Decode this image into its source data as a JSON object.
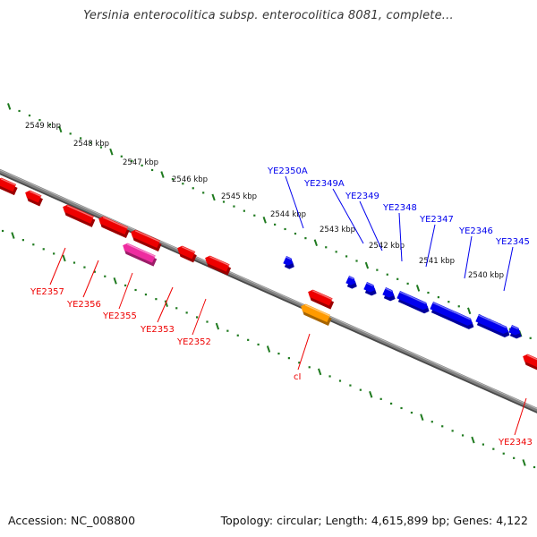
{
  "title": "Yersinia enterocolitica subsp. enterocolitica 8081, complete...",
  "footer": {
    "accession": "Accession: NC_008800",
    "topology": "Topology: circular; Length: 4,615,899 bp; Genes: 4,122"
  },
  "colors": {
    "backbone": "#808080",
    "ruler": "#1f7a1f",
    "forward_gene": "#0000ee",
    "reverse_gene": "#ee0000",
    "pink_gene": "#ee2ca0",
    "orange_gene": "#ff9a00"
  },
  "kbp_ticks": [
    "2549 kbp",
    "2548 kbp",
    "2547 kbp",
    "2546 kbp",
    "2545 kbp",
    "2544 kbp",
    "2543 kbp",
    "2542 kbp",
    "2541 kbp",
    "2540 kbp"
  ],
  "forward_labels": [
    "YE2350A",
    "YE2349A",
    "YE2349",
    "YE2348",
    "YE2347",
    "YE2346",
    "YE2345"
  ],
  "reverse_labels": [
    "YE2357",
    "YE2356",
    "YE2355",
    "YE2353",
    "YE2352",
    "cI",
    "YE2343"
  ]
}
